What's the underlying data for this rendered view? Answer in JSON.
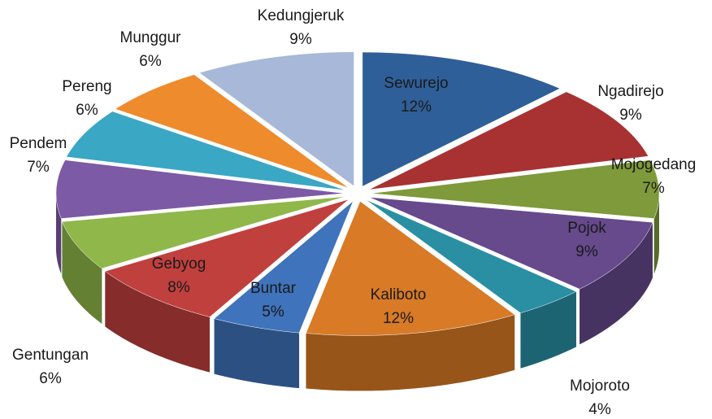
{
  "chart_data": {
    "type": "pie3d",
    "categories": [
      "Sewurejo",
      "Ngadirejo",
      "Mojogedang",
      "Pojok",
      "Mojoroto",
      "Kaliboto",
      "Buntar",
      "Gebyog",
      "Gentungan",
      "Pendem",
      "Pereng",
      "Munggur",
      "Kedungjeruk"
    ],
    "values": [
      12,
      9,
      7,
      9,
      4,
      12,
      5,
      8,
      6,
      7,
      6,
      6,
      9
    ],
    "value_labels": [
      "12%",
      "9%",
      "7%",
      "9%",
      "4%",
      "12%",
      "5%",
      "8%",
      "6%",
      "7%",
      "6%",
      "6%",
      "9%"
    ],
    "colors": [
      "#2f5f98",
      "#a83232",
      "#7e9a3a",
      "#664a8c",
      "#2a8fa3",
      "#d87a26",
      "#3f73bb",
      "#c0403e",
      "#8fb74a",
      "#7d5aa5",
      "#3aa7c4",
      "#ee8b2d",
      "#a7b8d8"
    ]
  }
}
